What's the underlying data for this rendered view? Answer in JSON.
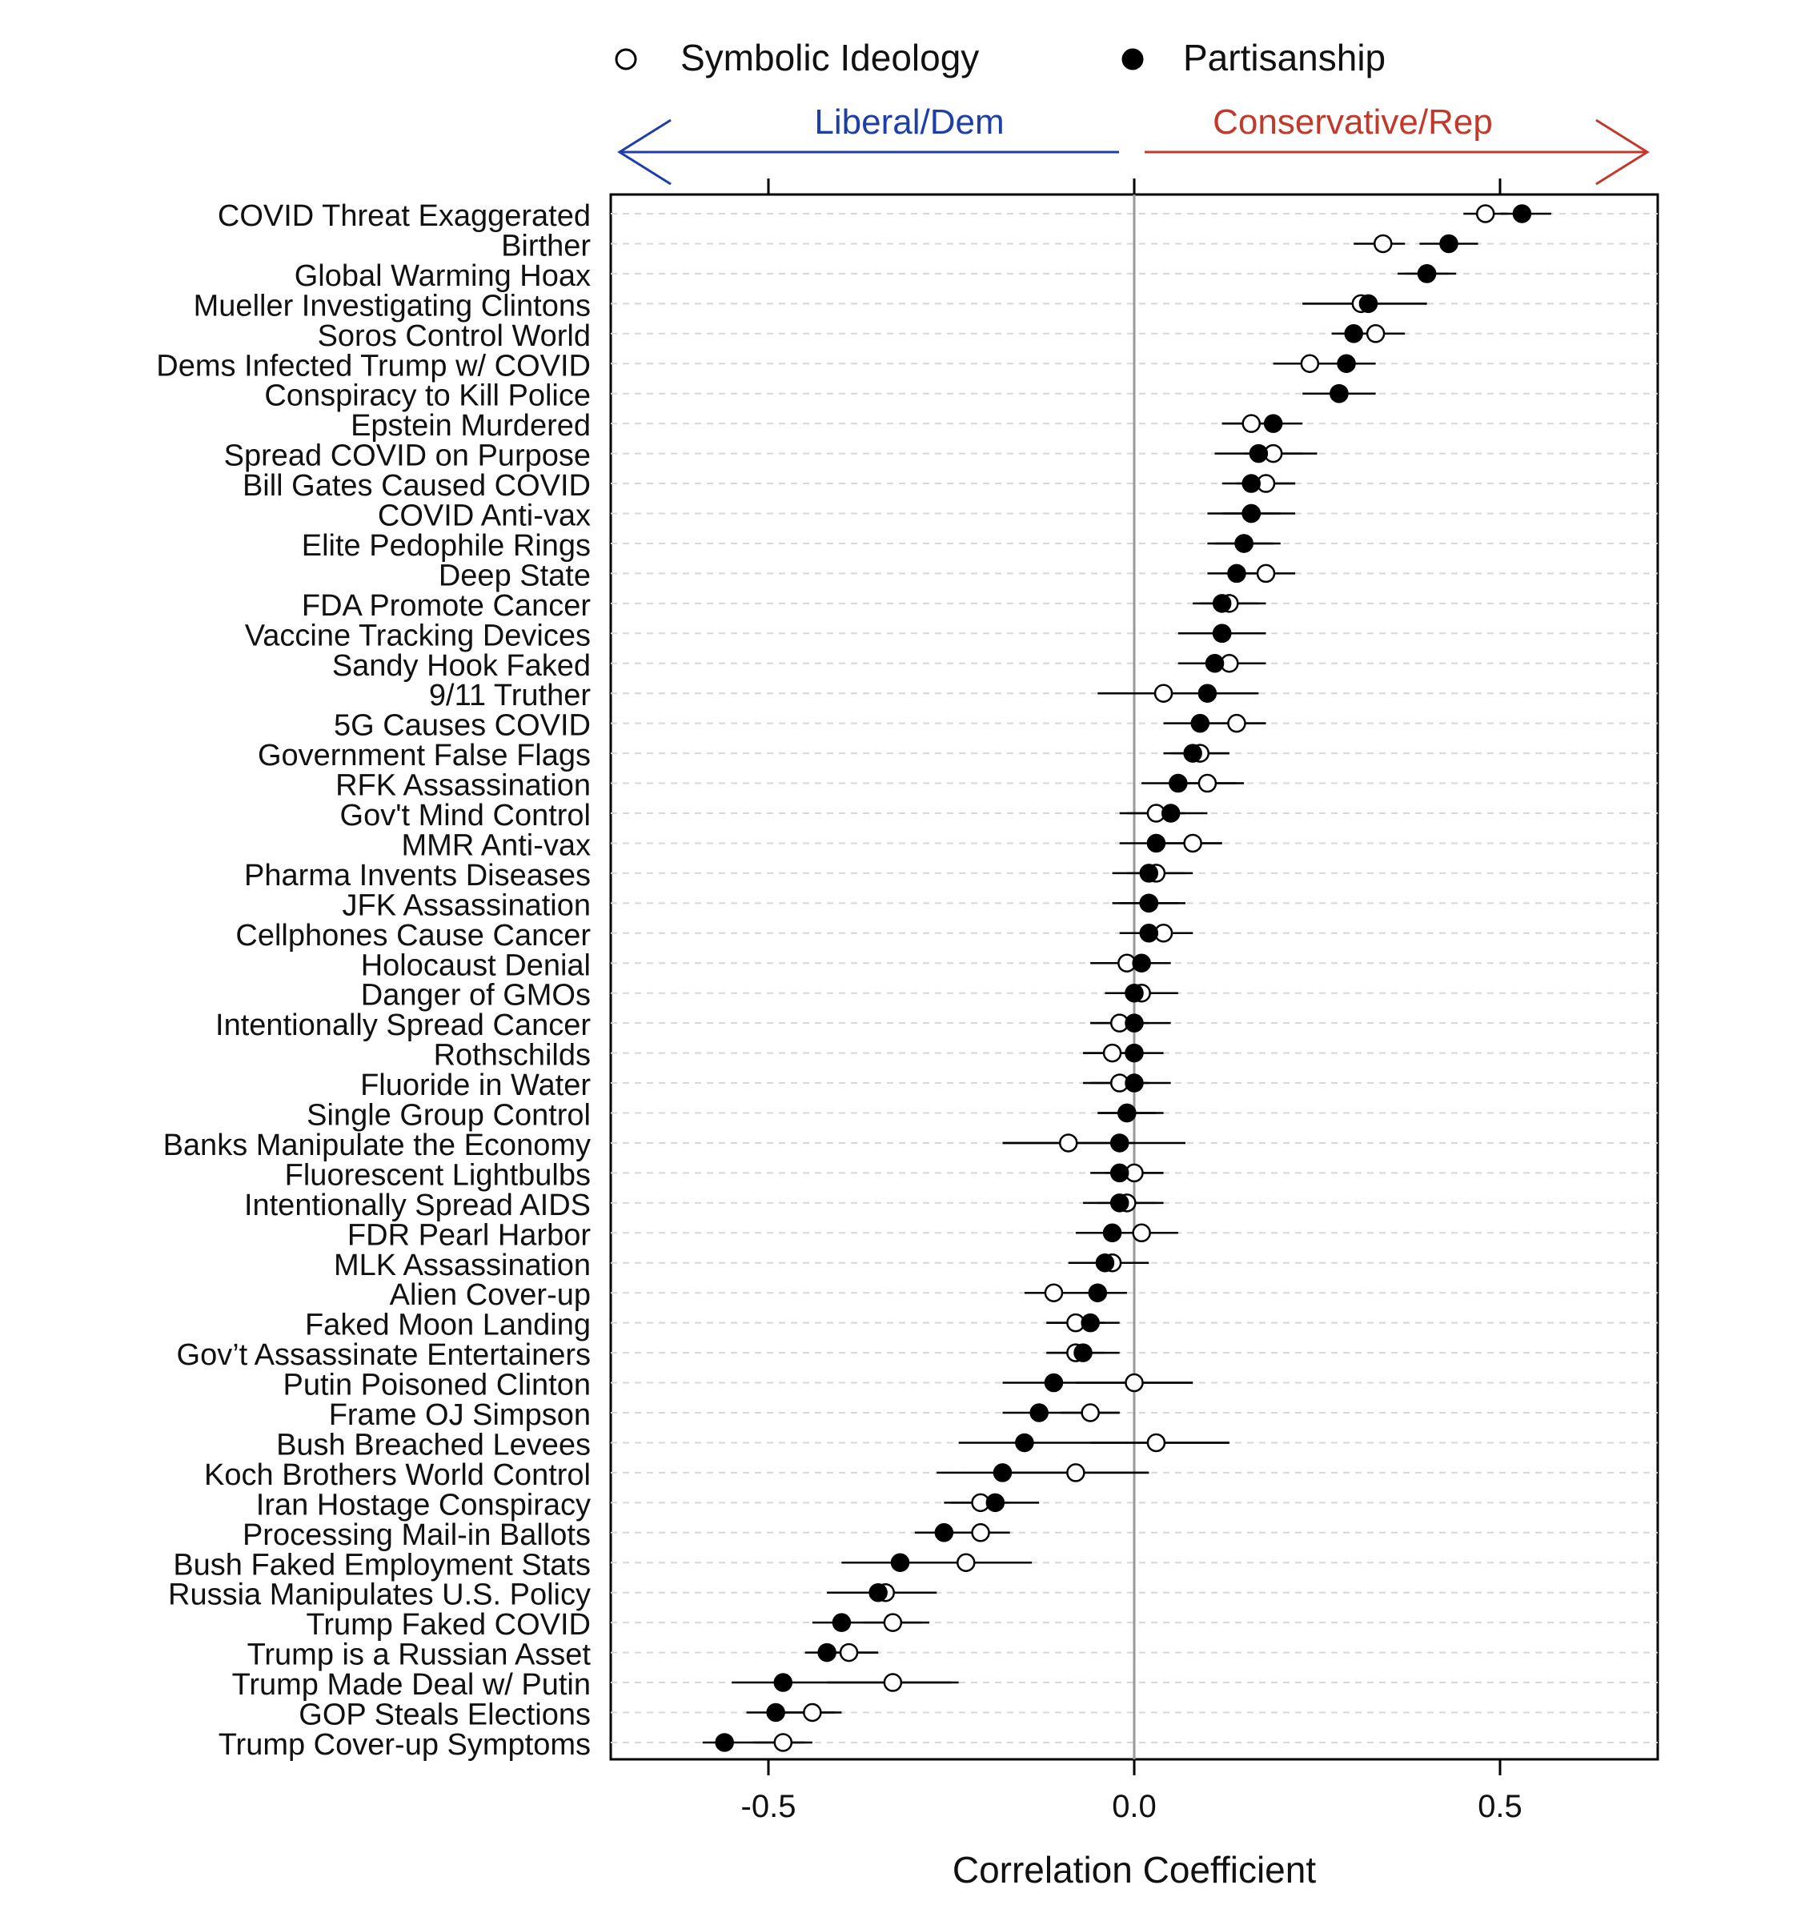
{
  "chart_data": {
    "type": "scatter",
    "xlabel": "Correlation Coefficient",
    "xlim": [
      -0.72,
      0.72
    ],
    "xticks": [
      "-0.5",
      "0.0",
      "0.5"
    ],
    "xtick_values": [
      -0.5,
      0.0,
      0.5
    ],
    "legend": {
      "placement": "top",
      "items": [
        {
          "label": "Symbolic Ideology",
          "marker": "open-circle"
        },
        {
          "label": "Partisanship",
          "marker": "filled-circle"
        }
      ]
    },
    "direction_labels": {
      "left": {
        "text": "Liberal/Dem",
        "color": "#1f3fa8"
      },
      "right": {
        "text": "Conservative/Rep",
        "color": "#c0392b"
      }
    },
    "grid": "horizontal dashed",
    "reference_line": 0.0,
    "categories": [
      "COVID Threat Exaggerated",
      "Birther",
      "Global Warming Hoax",
      "Mueller Investigating Clintons",
      "Soros Control World",
      "Dems Infected Trump w/ COVID",
      "Conspiracy to Kill Police",
      "Epstein Murdered",
      "Spread COVID on Purpose",
      "Bill Gates Caused COVID",
      "COVID Anti-vax",
      "Elite Pedophile Rings",
      "Deep State",
      "FDA Promote Cancer",
      "Vaccine Tracking Devices",
      "Sandy Hook Faked",
      "9/11 Truther",
      "5G Causes COVID",
      "Government False Flags",
      "RFK Assassination",
      "Gov't Mind Control",
      "MMR Anti-vax",
      "Pharma Invents Diseases",
      "JFK Assassination",
      "Cellphones Cause Cancer",
      "Holocaust Denial",
      "Danger of GMOs",
      "Intentionally Spread Cancer",
      "Rothschilds",
      "Fluoride in Water",
      "Single Group Control",
      "Banks Manipulate the Economy",
      "Fluorescent Lightbulbs",
      "Intentionally Spread AIDS",
      "FDR Pearl Harbor",
      "MLK Assassination",
      "Alien Cover-up",
      "Faked Moon Landing",
      "Gov’t Assassinate Entertainers",
      "Putin Poisoned Clinton",
      "Frame OJ Simpson",
      "Bush Breached Levees",
      "Koch Brothers World Control",
      "Iran Hostage Conspiracy",
      "Processing Mail-in Ballots",
      "Bush Faked Employment Stats",
      "Russia Manipulates U.S. Policy",
      "Trump Faked COVID",
      "Trump is a Russian Asset",
      "Trump Made Deal w/ Putin",
      "GOP Steals Elections",
      "Trump Cover-up Symptoms"
    ],
    "series": [
      {
        "name": "Symbolic Ideology",
        "marker": "open-circle",
        "values": [
          0.48,
          0.34,
          0.4,
          0.31,
          0.33,
          0.24,
          0.28,
          0.16,
          0.19,
          0.18,
          0.16,
          0.15,
          0.18,
          0.13,
          0.12,
          0.13,
          0.04,
          0.14,
          0.09,
          0.1,
          0.03,
          0.08,
          0.03,
          0.02,
          0.04,
          -0.01,
          0.01,
          -0.02,
          -0.03,
          -0.02,
          -0.01,
          -0.09,
          0.0,
          -0.01,
          0.01,
          -0.03,
          -0.11,
          -0.08,
          -0.08,
          0.0,
          -0.06,
          0.03,
          -0.08,
          -0.21,
          -0.21,
          -0.23,
          -0.34,
          -0.33,
          -0.39,
          -0.33,
          -0.44,
          -0.48
        ],
        "ci": [
          [
            0.45,
            0.51
          ],
          [
            0.3,
            0.37
          ],
          [
            0.37,
            0.43
          ],
          [
            0.23,
            0.4
          ],
          [
            0.27,
            0.37
          ],
          [
            0.19,
            0.29
          ],
          [
            0.24,
            0.32
          ],
          [
            0.12,
            0.2
          ],
          [
            0.15,
            0.23
          ],
          [
            0.14,
            0.22
          ],
          [
            0.12,
            0.2
          ],
          [
            0.11,
            0.19
          ],
          [
            0.14,
            0.22
          ],
          [
            0.09,
            0.17
          ],
          [
            0.08,
            0.16
          ],
          [
            0.09,
            0.17
          ],
          [
            -0.03,
            0.11
          ],
          [
            0.1,
            0.18
          ],
          [
            0.05,
            0.13
          ],
          [
            0.06,
            0.14
          ],
          [
            -0.01,
            0.07
          ],
          [
            0.04,
            0.12
          ],
          [
            -0.01,
            0.07
          ],
          [
            -0.02,
            0.06
          ],
          [
            0.0,
            0.08
          ],
          [
            -0.05,
            0.03
          ],
          [
            -0.03,
            0.05
          ],
          [
            -0.06,
            0.02
          ],
          [
            -0.07,
            0.01
          ],
          [
            -0.06,
            0.02
          ],
          [
            -0.05,
            0.03
          ],
          [
            -0.18,
            0.0
          ],
          [
            -0.04,
            0.04
          ],
          [
            -0.05,
            0.03
          ],
          [
            -0.03,
            0.05
          ],
          [
            -0.07,
            0.01
          ],
          [
            -0.15,
            -0.07
          ],
          [
            -0.12,
            -0.04
          ],
          [
            -0.12,
            -0.04
          ],
          [
            -0.08,
            0.08
          ],
          [
            -0.1,
            -0.02
          ],
          [
            -0.06,
            0.13
          ],
          [
            -0.17,
            0.02
          ],
          [
            -0.25,
            -0.17
          ],
          [
            -0.25,
            -0.17
          ],
          [
            -0.32,
            -0.14
          ],
          [
            -0.38,
            -0.3
          ],
          [
            -0.37,
            -0.29
          ],
          [
            -0.43,
            -0.35
          ],
          [
            -0.42,
            -0.24
          ],
          [
            -0.48,
            -0.4
          ],
          [
            -0.52,
            -0.44
          ]
        ]
      },
      {
        "name": "Partisanship",
        "marker": "filled-circle",
        "values": [
          0.53,
          0.43,
          0.4,
          0.32,
          0.3,
          0.29,
          0.28,
          0.19,
          0.17,
          0.16,
          0.16,
          0.15,
          0.14,
          0.12,
          0.12,
          0.11,
          0.1,
          0.09,
          0.08,
          0.06,
          0.05,
          0.03,
          0.02,
          0.02,
          0.02,
          0.01,
          0.0,
          0.0,
          0.0,
          0.0,
          -0.01,
          -0.02,
          -0.02,
          -0.02,
          -0.03,
          -0.04,
          -0.05,
          -0.06,
          -0.07,
          -0.11,
          -0.13,
          -0.15,
          -0.18,
          -0.19,
          -0.26,
          -0.32,
          -0.35,
          -0.4,
          -0.42,
          -0.48,
          -0.49,
          -0.56
        ],
        "ci": [
          [
            0.5,
            0.57
          ],
          [
            0.39,
            0.47
          ],
          [
            0.36,
            0.44
          ],
          [
            0.23,
            0.4
          ],
          [
            0.27,
            0.33
          ],
          [
            0.24,
            0.33
          ],
          [
            0.23,
            0.33
          ],
          [
            0.12,
            0.23
          ],
          [
            0.11,
            0.25
          ],
          [
            0.12,
            0.22
          ],
          [
            0.1,
            0.22
          ],
          [
            0.1,
            0.2
          ],
          [
            0.1,
            0.19
          ],
          [
            0.08,
            0.18
          ],
          [
            0.06,
            0.18
          ],
          [
            0.06,
            0.18
          ],
          [
            -0.05,
            0.17
          ],
          [
            0.04,
            0.18
          ],
          [
            0.04,
            0.13
          ],
          [
            0.01,
            0.15
          ],
          [
            -0.02,
            0.1
          ],
          [
            -0.02,
            0.12
          ],
          [
            -0.03,
            0.08
          ],
          [
            -0.03,
            0.07
          ],
          [
            -0.02,
            0.08
          ],
          [
            -0.06,
            0.05
          ],
          [
            -0.04,
            0.06
          ],
          [
            -0.06,
            0.05
          ],
          [
            -0.07,
            0.04
          ],
          [
            -0.07,
            0.05
          ],
          [
            -0.05,
            0.04
          ],
          [
            -0.18,
            0.07
          ],
          [
            -0.06,
            0.04
          ],
          [
            -0.07,
            0.04
          ],
          [
            -0.08,
            0.06
          ],
          [
            -0.09,
            0.02
          ],
          [
            -0.11,
            -0.01
          ],
          [
            -0.12,
            -0.02
          ],
          [
            -0.12,
            -0.02
          ],
          [
            -0.18,
            0.08
          ],
          [
            -0.18,
            -0.02
          ],
          [
            -0.24,
            0.13
          ],
          [
            -0.27,
            0.02
          ],
          [
            -0.26,
            -0.13
          ],
          [
            -0.3,
            -0.17
          ],
          [
            -0.4,
            -0.14
          ],
          [
            -0.42,
            -0.27
          ],
          [
            -0.44,
            -0.28
          ],
          [
            -0.45,
            -0.35
          ],
          [
            -0.55,
            -0.25
          ],
          [
            -0.53,
            -0.41
          ],
          [
            -0.59,
            -0.45
          ]
        ]
      }
    ]
  }
}
